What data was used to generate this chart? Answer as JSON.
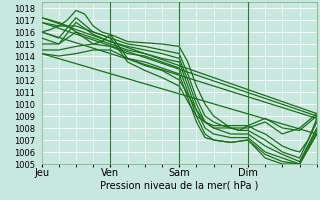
{
  "xlabel": "Pression niveau de la mer( hPa )",
  "ylim": [
    1005,
    1018.5
  ],
  "xlim": [
    0,
    96
  ],
  "yticks": [
    1005,
    1006,
    1007,
    1008,
    1009,
    1010,
    1011,
    1012,
    1013,
    1014,
    1015,
    1016,
    1017,
    1018
  ],
  "xticks": [
    0,
    24,
    48,
    72
  ],
  "xtick_labels": [
    "Jeu",
    "Ven",
    "Sam",
    "Dim"
  ],
  "bg_color": "#c8e8df",
  "grid_color": "#ffffff",
  "line_color": "#1a6e1a",
  "series": [
    [
      0,
      1016.0,
      3,
      1016.2,
      6,
      1016.5,
      9,
      1017.0,
      12,
      1017.8,
      15,
      1017.5,
      18,
      1016.5,
      21,
      1016.0,
      24,
      1015.8,
      30,
      1015.2,
      36,
      1015.1,
      42,
      1015.0,
      48,
      1014.8,
      51,
      1013.5,
      54,
      1011.5,
      57,
      1010.0,
      60,
      1009.0,
      63,
      1008.5,
      66,
      1008.0,
      69,
      1007.8,
      72,
      1008.2,
      75,
      1007.8,
      78,
      1007.5,
      81,
      1007.0,
      84,
      1006.5,
      87,
      1006.2,
      90,
      1006.0,
      93,
      1007.0,
      96,
      1008.8
    ],
    [
      0,
      1016.0,
      6,
      1015.5,
      12,
      1017.2,
      18,
      1016.0,
      24,
      1015.5,
      30,
      1015.0,
      36,
      1014.8,
      42,
      1014.5,
      48,
      1014.2,
      51,
      1012.5,
      54,
      1010.5,
      57,
      1009.0,
      60,
      1008.5,
      63,
      1008.2,
      66,
      1008.0,
      69,
      1007.8,
      72,
      1007.8,
      78,
      1007.0,
      84,
      1006.0,
      90,
      1005.5,
      96,
      1008.5
    ],
    [
      0,
      1015.5,
      6,
      1015.0,
      12,
      1016.8,
      18,
      1015.8,
      24,
      1015.2,
      30,
      1014.8,
      36,
      1014.5,
      42,
      1014.2,
      48,
      1013.8,
      51,
      1012.0,
      54,
      1010.0,
      57,
      1008.5,
      60,
      1008.0,
      66,
      1007.5,
      72,
      1007.5,
      78,
      1006.5,
      84,
      1005.8,
      90,
      1005.2,
      96,
      1008.0
    ],
    [
      0,
      1015.0,
      6,
      1015.0,
      12,
      1016.0,
      18,
      1015.5,
      24,
      1015.0,
      30,
      1014.5,
      36,
      1014.2,
      42,
      1013.8,
      48,
      1013.5,
      51,
      1011.5,
      54,
      1009.5,
      57,
      1008.0,
      60,
      1007.5,
      66,
      1007.2,
      72,
      1007.2,
      78,
      1006.0,
      84,
      1005.5,
      90,
      1005.0,
      96,
      1007.8
    ],
    [
      0,
      1014.5,
      6,
      1014.5,
      12,
      1014.8,
      18,
      1015.0,
      24,
      1014.8,
      30,
      1014.2,
      36,
      1014.0,
      42,
      1013.5,
      48,
      1013.0,
      51,
      1011.0,
      54,
      1009.0,
      57,
      1007.5,
      60,
      1007.0,
      66,
      1006.8,
      72,
      1007.0,
      78,
      1005.8,
      84,
      1005.2,
      90,
      1005.0,
      96,
      1007.5
    ],
    [
      0,
      1014.2,
      6,
      1014.0,
      12,
      1014.2,
      18,
      1014.5,
      24,
      1014.5,
      30,
      1013.8,
      36,
      1013.5,
      42,
      1013.0,
      48,
      1012.5,
      51,
      1010.5,
      54,
      1008.5,
      57,
      1007.2,
      60,
      1007.0,
      66,
      1006.8,
      72,
      1007.0,
      78,
      1005.5,
      84,
      1005.0,
      90,
      1005.0,
      96,
      1007.5
    ],
    [
      0,
      1017.2,
      3,
      1017.0,
      6,
      1016.8,
      9,
      1016.5,
      12,
      1016.0,
      15,
      1015.5,
      18,
      1015.0,
      21,
      1015.2,
      24,
      1015.8,
      30,
      1013.8,
      36,
      1013.2,
      42,
      1012.8,
      48,
      1012.0,
      51,
      1010.8,
      54,
      1009.5,
      57,
      1008.5,
      60,
      1008.0,
      66,
      1008.0,
      72,
      1008.0,
      78,
      1008.5,
      84,
      1007.5,
      90,
      1008.0,
      96,
      1009.2
    ],
    [
      0,
      1016.8,
      6,
      1016.5,
      12,
      1016.5,
      18,
      1016.0,
      24,
      1015.5,
      30,
      1013.5,
      36,
      1012.8,
      42,
      1012.2,
      48,
      1011.5,
      51,
      1010.2,
      54,
      1009.0,
      57,
      1008.5,
      60,
      1008.2,
      66,
      1008.2,
      72,
      1008.2,
      78,
      1008.8,
      84,
      1008.0,
      90,
      1007.8,
      96,
      1009.0
    ]
  ],
  "straight_lines": [
    [
      [
        0,
        1016.0
      ],
      [
        96,
        1008.8
      ]
    ],
    [
      [
        0,
        1014.2
      ],
      [
        96,
        1007.5
      ]
    ],
    [
      [
        0,
        1017.2
      ],
      [
        96,
        1009.2
      ]
    ],
    [
      [
        0,
        1016.8
      ],
      [
        96,
        1009.0
      ]
    ]
  ]
}
